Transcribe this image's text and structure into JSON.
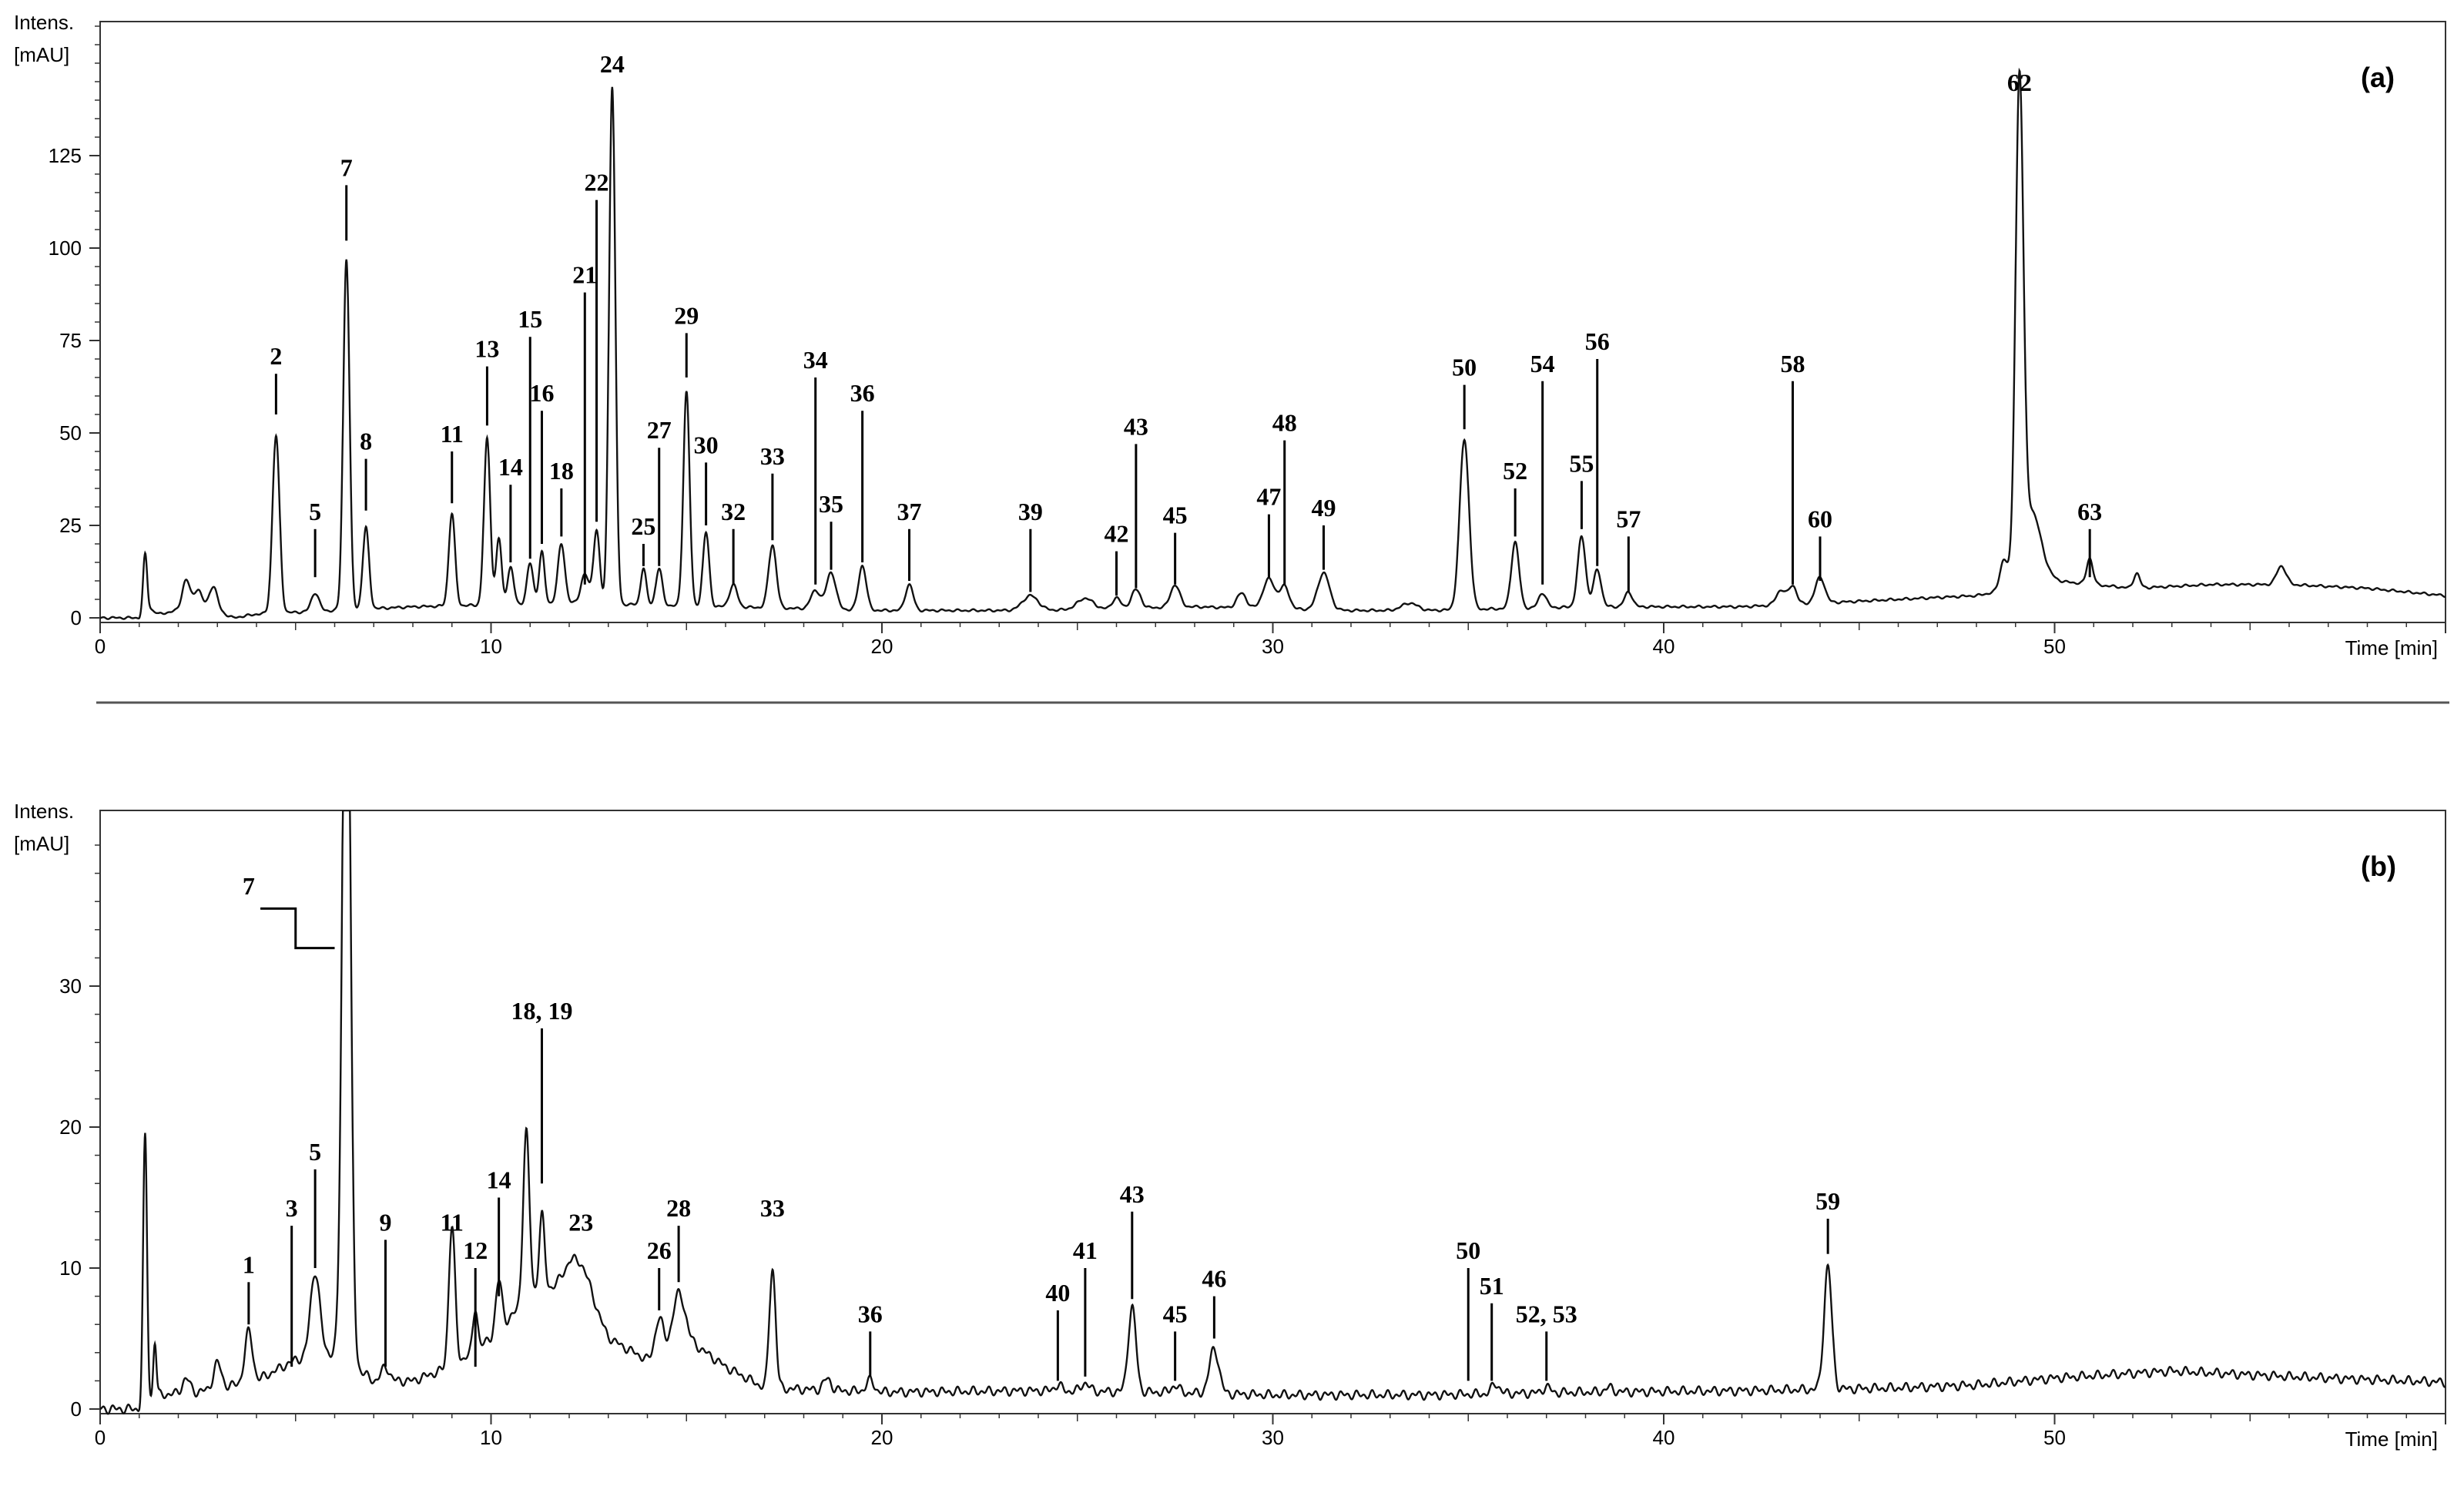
{
  "chart_data": [
    {
      "type": "line",
      "panel_label": "(a)",
      "ylabel": "Intens.\n[mAU]",
      "xlabel": "Time [min]",
      "xlim": [
        0,
        60
      ],
      "ylim": [
        -5,
        160
      ],
      "x_ticks": [
        0,
        10,
        20,
        30,
        40,
        50
      ],
      "y_ticks": [
        0,
        25,
        50,
        75,
        100,
        125
      ],
      "baseline": [
        [
          0,
          0
        ],
        [
          1.0,
          0
        ],
        [
          1.2,
          3
        ],
        [
          1.5,
          1
        ],
        [
          2,
          2
        ],
        [
          2.8,
          3
        ],
        [
          3.4,
          0
        ],
        [
          4,
          1
        ],
        [
          6,
          2
        ],
        [
          8,
          3
        ],
        [
          12,
          4
        ],
        [
          16,
          3
        ],
        [
          20,
          2
        ],
        [
          24,
          2
        ],
        [
          28,
          3
        ],
        [
          32,
          2
        ],
        [
          34,
          2
        ],
        [
          38,
          3
        ],
        [
          42,
          3
        ],
        [
          46,
          5
        ],
        [
          48,
          6
        ],
        [
          50,
          10
        ],
        [
          52,
          8
        ],
        [
          54,
          9
        ],
        [
          56,
          9
        ],
        [
          58,
          8
        ],
        [
          60,
          6
        ]
      ],
      "peaks": [
        {
          "x": 1.15,
          "h": 15,
          "w": 0.05
        },
        {
          "x": 2.2,
          "h": 8,
          "w": 0.1
        },
        {
          "x": 2.5,
          "h": 5,
          "w": 0.1
        },
        {
          "x": 2.9,
          "h": 6,
          "w": 0.1
        },
        {
          "x": 4.5,
          "h": 48,
          "w": 0.09
        },
        {
          "x": 5.5,
          "h": 5,
          "w": 0.1
        },
        {
          "x": 6.3,
          "h": 95,
          "w": 0.08
        },
        {
          "x": 6.8,
          "h": 22,
          "w": 0.08
        },
        {
          "x": 9.0,
          "h": 25,
          "w": 0.08
        },
        {
          "x": 9.9,
          "h": 45,
          "w": 0.08
        },
        {
          "x": 10.2,
          "h": 18,
          "w": 0.07
        },
        {
          "x": 10.5,
          "h": 10,
          "w": 0.08
        },
        {
          "x": 11.0,
          "h": 11,
          "w": 0.08
        },
        {
          "x": 11.3,
          "h": 14,
          "w": 0.07
        },
        {
          "x": 11.8,
          "h": 16,
          "w": 0.09
        },
        {
          "x": 12.4,
          "h": 8,
          "w": 0.1
        },
        {
          "x": 12.7,
          "h": 20,
          "w": 0.08
        },
        {
          "x": 13.1,
          "h": 140,
          "w": 0.08
        },
        {
          "x": 13.9,
          "h": 10,
          "w": 0.07
        },
        {
          "x": 14.3,
          "h": 10,
          "w": 0.08
        },
        {
          "x": 15.0,
          "h": 58,
          "w": 0.08
        },
        {
          "x": 15.5,
          "h": 20,
          "w": 0.08
        },
        {
          "x": 16.2,
          "h": 6,
          "w": 0.1
        },
        {
          "x": 17.2,
          "h": 17,
          "w": 0.1
        },
        {
          "x": 18.3,
          "h": 5,
          "w": 0.12
        },
        {
          "x": 18.7,
          "h": 10,
          "w": 0.12
        },
        {
          "x": 19.5,
          "h": 12,
          "w": 0.1
        },
        {
          "x": 20.7,
          "h": 7,
          "w": 0.1
        },
        {
          "x": 23.8,
          "h": 4,
          "w": 0.2
        },
        {
          "x": 25.2,
          "h": 3,
          "w": 0.2
        },
        {
          "x": 26.0,
          "h": 3,
          "w": 0.1
        },
        {
          "x": 26.5,
          "h": 5,
          "w": 0.12
        },
        {
          "x": 27.5,
          "h": 6,
          "w": 0.12
        },
        {
          "x": 29.2,
          "h": 4,
          "w": 0.12
        },
        {
          "x": 29.9,
          "h": 8,
          "w": 0.15
        },
        {
          "x": 30.3,
          "h": 6,
          "w": 0.12
        },
        {
          "x": 31.3,
          "h": 10,
          "w": 0.15
        },
        {
          "x": 33.5,
          "h": 2,
          "w": 0.2
        },
        {
          "x": 34.9,
          "h": 46,
          "w": 0.12
        },
        {
          "x": 36.2,
          "h": 18,
          "w": 0.1
        },
        {
          "x": 36.9,
          "h": 4,
          "w": 0.1
        },
        {
          "x": 37.9,
          "h": 19,
          "w": 0.1
        },
        {
          "x": 38.3,
          "h": 10,
          "w": 0.1
        },
        {
          "x": 39.1,
          "h": 4,
          "w": 0.1
        },
        {
          "x": 43.0,
          "h": 4,
          "w": 0.12
        },
        {
          "x": 43.3,
          "h": 5,
          "w": 0.1
        },
        {
          "x": 44.0,
          "h": 7,
          "w": 0.12
        },
        {
          "x": 48.7,
          "h": 8,
          "w": 0.1
        },
        {
          "x": 49.1,
          "h": 130,
          "w": 0.1
        },
        {
          "x": 49.4,
          "h": 20,
          "w": 0.25
        },
        {
          "x": 50.9,
          "h": 7,
          "w": 0.08
        },
        {
          "x": 52.1,
          "h": 4,
          "w": 0.08
        },
        {
          "x": 55.8,
          "h": 5,
          "w": 0.12
        }
      ],
      "annotations": [
        {
          "label": "2",
          "x": 4.5,
          "y1": 55,
          "y2": 66
        },
        {
          "label": "5",
          "x": 5.5,
          "y1": 11,
          "y2": 24
        },
        {
          "label": "7",
          "x": 6.3,
          "y1": 102,
          "y2": 117
        },
        {
          "label": "8",
          "x": 6.8,
          "y1": 29,
          "y2": 43
        },
        {
          "label": "11",
          "x": 9.0,
          "y1": 31,
          "y2": 45
        },
        {
          "label": "13",
          "x": 9.9,
          "y1": 52,
          "y2": 68
        },
        {
          "label": "14",
          "x": 10.5,
          "y1": 15,
          "y2": 36
        },
        {
          "label": "15",
          "x": 11.0,
          "y1": 16,
          "y2": 76
        },
        {
          "label": "16",
          "x": 11.3,
          "y1": 20,
          "y2": 56
        },
        {
          "label": "18",
          "x": 11.8,
          "y1": 22,
          "y2": 35
        },
        {
          "label": "21",
          "x": 12.4,
          "y1": 9,
          "y2": 88
        },
        {
          "label": "22",
          "x": 12.7,
          "y1": 26,
          "y2": 113
        },
        {
          "label": "24",
          "x": 13.1,
          "y1": 145,
          "y2": 145
        },
        {
          "label": "25",
          "x": 13.9,
          "y1": 14,
          "y2": 20
        },
        {
          "label": "27",
          "x": 14.3,
          "y1": 14,
          "y2": 46
        },
        {
          "label": "29",
          "x": 15.0,
          "y1": 65,
          "y2": 77
        },
        {
          "label": "30",
          "x": 15.5,
          "y1": 25,
          "y2": 42
        },
        {
          "label": "32",
          "x": 16.2,
          "y1": 9,
          "y2": 24
        },
        {
          "label": "33",
          "x": 17.2,
          "y1": 21,
          "y2": 39
        },
        {
          "label": "34",
          "x": 18.3,
          "y1": 9,
          "y2": 65
        },
        {
          "label": "35",
          "x": 18.7,
          "y1": 13,
          "y2": 26
        },
        {
          "label": "36",
          "x": 19.5,
          "y1": 15,
          "y2": 56
        },
        {
          "label": "37",
          "x": 20.7,
          "y1": 10,
          "y2": 24
        },
        {
          "label": "39",
          "x": 23.8,
          "y1": 7,
          "y2": 24
        },
        {
          "label": "42",
          "x": 26.0,
          "y1": 6,
          "y2": 18
        },
        {
          "label": "43",
          "x": 26.5,
          "y1": 8,
          "y2": 47
        },
        {
          "label": "45",
          "x": 27.5,
          "y1": 9,
          "y2": 23
        },
        {
          "label": "47",
          "x": 29.9,
          "y1": 11,
          "y2": 28
        },
        {
          "label": "48",
          "x": 30.3,
          "y1": 9,
          "y2": 48
        },
        {
          "label": "49",
          "x": 31.3,
          "y1": 13,
          "y2": 25
        },
        {
          "label": "50",
          "x": 34.9,
          "y1": 51,
          "y2": 63
        },
        {
          "label": "52",
          "x": 36.2,
          "y1": 22,
          "y2": 35
        },
        {
          "label": "54",
          "x": 36.9,
          "y1": 9,
          "y2": 64
        },
        {
          "label": "55",
          "x": 37.9,
          "y1": 24,
          "y2": 37
        },
        {
          "label": "56",
          "x": 38.3,
          "y1": 14,
          "y2": 70
        },
        {
          "label": "57",
          "x": 39.1,
          "y1": 7,
          "y2": 22
        },
        {
          "label": "58",
          "x": 43.3,
          "y1": 9,
          "y2": 64
        },
        {
          "label": "60",
          "x": 44.0,
          "y1": 10,
          "y2": 22
        },
        {
          "label": "62",
          "x": 49.1,
          "y1": 140,
          "y2": 140
        },
        {
          "label": "63",
          "x": 50.9,
          "y1": 11,
          "y2": 24
        }
      ]
    },
    {
      "type": "line",
      "panel_label": "(b)",
      "ylabel": "Intens.\n[mAU]",
      "xlabel": "Time [min]",
      "xlim": [
        0,
        60
      ],
      "ylim": [
        -1,
        41
      ],
      "x_ticks": [
        0,
        10,
        20,
        30,
        40,
        50
      ],
      "y_ticks": [
        0,
        10,
        20,
        30
      ],
      "inset_label": "7",
      "baseline": [
        [
          0,
          0
        ],
        [
          1.0,
          0
        ],
        [
          1.5,
          1
        ],
        [
          2.5,
          1.2
        ],
        [
          4,
          2
        ],
        [
          5,
          3.5
        ],
        [
          6,
          4
        ],
        [
          7,
          2
        ],
        [
          8,
          2
        ],
        [
          9,
          3
        ],
        [
          10,
          5
        ],
        [
          11,
          8
        ],
        [
          12,
          9
        ],
        [
          13,
          5
        ],
        [
          14,
          3.5
        ],
        [
          15,
          5
        ],
        [
          16,
          3
        ],
        [
          17,
          1.5
        ],
        [
          20,
          1.2
        ],
        [
          24,
          1.3
        ],
        [
          27,
          1.2
        ],
        [
          30,
          1
        ],
        [
          34,
          1
        ],
        [
          38,
          1.2
        ],
        [
          42,
          1.3
        ],
        [
          46,
          1.5
        ],
        [
          48,
          1.7
        ],
        [
          50,
          2.2
        ],
        [
          53,
          2.7
        ],
        [
          56,
          2.3
        ],
        [
          60,
          1.9
        ]
      ],
      "peaks": [
        {
          "x": 1.15,
          "h": 19,
          "w": 0.05
        },
        {
          "x": 1.4,
          "h": 4,
          "w": 0.04
        },
        {
          "x": 2.2,
          "h": 1,
          "w": 0.1
        },
        {
          "x": 3.0,
          "h": 1.8,
          "w": 0.1
        },
        {
          "x": 3.8,
          "h": 3.6,
          "w": 0.1
        },
        {
          "x": 5.5,
          "h": 6,
          "w": 0.12
        },
        {
          "x": 6.3,
          "h": 60,
          "w": 0.1
        },
        {
          "x": 7.3,
          "h": 1,
          "w": 0.1
        },
        {
          "x": 9.0,
          "h": 10,
          "w": 0.08
        },
        {
          "x": 9.6,
          "h": 3,
          "w": 0.06
        },
        {
          "x": 10.2,
          "h": 3.5,
          "w": 0.08
        },
        {
          "x": 10.9,
          "h": 12,
          "w": 0.08
        },
        {
          "x": 11.3,
          "h": 5.5,
          "w": 0.07
        },
        {
          "x": 12.3,
          "h": 2.5,
          "w": 0.3
        },
        {
          "x": 14.3,
          "h": 2.5,
          "w": 0.1
        },
        {
          "x": 14.8,
          "h": 3.5,
          "w": 0.15
        },
        {
          "x": 17.2,
          "h": 8.5,
          "w": 0.08
        },
        {
          "x": 18.6,
          "h": 0.8,
          "w": 0.1
        },
        {
          "x": 19.7,
          "h": 0.8,
          "w": 0.1
        },
        {
          "x": 24.5,
          "h": 0.4,
          "w": 0.1
        },
        {
          "x": 25.2,
          "h": 0.6,
          "w": 0.1
        },
        {
          "x": 26.4,
          "h": 6,
          "w": 0.1
        },
        {
          "x": 27.5,
          "h": 0.5,
          "w": 0.1
        },
        {
          "x": 28.5,
          "h": 3.2,
          "w": 0.12
        },
        {
          "x": 35.7,
          "h": 0.7,
          "w": 0.1
        },
        {
          "x": 37.0,
          "h": 0.4,
          "w": 0.1
        },
        {
          "x": 38.6,
          "h": 0.3,
          "w": 0.1
        },
        {
          "x": 44.2,
          "h": 8.7,
          "w": 0.1
        }
      ],
      "annotations": [
        {
          "label": "1",
          "x": 3.8,
          "y1": 6,
          "y2": 9
        },
        {
          "label": "3",
          "x": 4.9,
          "y1": 3,
          "y2": 13
        },
        {
          "label": "5",
          "x": 5.5,
          "y1": 10,
          "y2": 17
        },
        {
          "label": "9",
          "x": 7.3,
          "y1": 3,
          "y2": 12
        },
        {
          "label": "11",
          "x": 9.0,
          "y1": 14,
          "y2": 12
        },
        {
          "label": "12",
          "x": 9.6,
          "y1": 3,
          "y2": 10
        },
        {
          "label": "14",
          "x": 10.2,
          "y1": 8,
          "y2": 15
        },
        {
          "label": "18, 19",
          "x": 11.3,
          "y1": 16,
          "y2": 27
        },
        {
          "label": "23",
          "x": 12.3,
          "y1": 13,
          "y2": 12
        },
        {
          "label": "26",
          "x": 14.3,
          "y1": 7,
          "y2": 10
        },
        {
          "label": "28",
          "x": 14.8,
          "y1": 9,
          "y2": 13
        },
        {
          "label": "33",
          "x": 17.2,
          "y1": 14,
          "y2": 13
        },
        {
          "label": "36",
          "x": 19.7,
          "y1": 2.3,
          "y2": 5.5
        },
        {
          "label": "40",
          "x": 24.5,
          "y1": 2,
          "y2": 7
        },
        {
          "label": "41",
          "x": 25.2,
          "y1": 2.3,
          "y2": 10
        },
        {
          "label": "43",
          "x": 26.4,
          "y1": 7.8,
          "y2": 14
        },
        {
          "label": "45",
          "x": 27.5,
          "y1": 2,
          "y2": 5.5
        },
        {
          "label": "46",
          "x": 28.5,
          "y1": 5,
          "y2": 8
        },
        {
          "label": "50",
          "x": 35.0,
          "y1": 2,
          "y2": 10
        },
        {
          "label": "51",
          "x": 35.6,
          "y1": 2,
          "y2": 7.5
        },
        {
          "label": "52, 53",
          "x": 37.0,
          "y1": 2,
          "y2": 5.5
        },
        {
          "label": "59",
          "x": 44.2,
          "y1": 11,
          "y2": 13.5
        }
      ]
    }
  ]
}
